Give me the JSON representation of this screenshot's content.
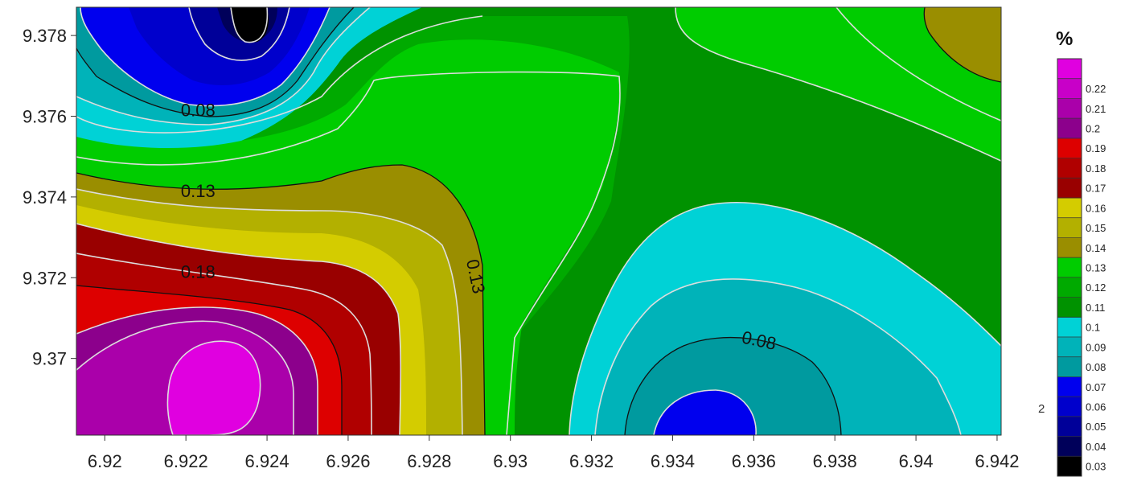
{
  "chart_data": {
    "type": "heatmap",
    "subtype": "filled-contour",
    "title": "",
    "xlabel": "",
    "ylabel": "",
    "xlim": [
      6.9193,
      6.9421
    ],
    "ylim": [
      9.3681,
      9.3787
    ],
    "x_ticks": [
      "6.92",
      "6.922",
      "6.924",
      "6.926",
      "6.928",
      "6.93",
      "6.932",
      "6.934",
      "6.936",
      "6.938",
      "6.94",
      "6.942"
    ],
    "x_tick_values": [
      6.92,
      6.922,
      6.924,
      6.926,
      6.928,
      6.93,
      6.932,
      6.934,
      6.936,
      6.938,
      6.94,
      6.942
    ],
    "y_ticks": [
      "9.37",
      "9.372",
      "9.374",
      "9.376",
      "9.378"
    ],
    "y_tick_values": [
      9.37,
      9.372,
      9.374,
      9.376,
      9.378
    ],
    "colorbar": {
      "unit": "%",
      "levels": [
        "0.03",
        "0.04",
        "0.05",
        "0.06",
        "0.07",
        "0.08",
        "0.09",
        "0.1",
        "0.11",
        "0.12",
        "0.13",
        "0.14",
        "0.15",
        "0.16",
        "0.17",
        "0.18",
        "0.19",
        "0.2",
        "0.21",
        "0.22"
      ],
      "bands": [
        {
          "range": [
            0.02,
            0.03
          ],
          "color": "#000000"
        },
        {
          "range": [
            0.03,
            0.04
          ],
          "color": "#00005a"
        },
        {
          "range": [
            0.04,
            0.05
          ],
          "color": "#000099"
        },
        {
          "range": [
            0.05,
            0.06
          ],
          "color": "#0000cc"
        },
        {
          "range": [
            0.06,
            0.07
          ],
          "color": "#0000ee"
        },
        {
          "range": [
            0.07,
            0.08
          ],
          "color": "#009a9f"
        },
        {
          "range": [
            0.08,
            0.09
          ],
          "color": "#00b3b9"
        },
        {
          "range": [
            0.09,
            0.1
          ],
          "color": "#00d2d6"
        },
        {
          "range": [
            0.1,
            0.11
          ],
          "color": "#009200"
        },
        {
          "range": [
            0.11,
            0.12
          ],
          "color": "#00aa00"
        },
        {
          "range": [
            0.12,
            0.13
          ],
          "color": "#00cc00"
        },
        {
          "range": [
            0.13,
            0.14
          ],
          "color": "#9a8e00"
        },
        {
          "range": [
            0.14,
            0.15
          ],
          "color": "#b3b000"
        },
        {
          "range": [
            0.15,
            0.16
          ],
          "color": "#d4cc00"
        },
        {
          "range": [
            0.16,
            0.17
          ],
          "color": "#990000"
        },
        {
          "range": [
            0.17,
            0.18
          ],
          "color": "#b00000"
        },
        {
          "range": [
            0.18,
            0.19
          ],
          "color": "#dd0000"
        },
        {
          "range": [
            0.19,
            0.2
          ],
          "color": "#8c008c"
        },
        {
          "range": [
            0.2,
            0.21
          ],
          "color": "#aa00aa"
        },
        {
          "range": [
            0.21,
            0.22
          ],
          "color": "#c800c8"
        },
        {
          "range": [
            0.22,
            0.23
          ],
          "color": "#e000e0"
        }
      ]
    },
    "contour_labels": [
      {
        "text": "0.08",
        "x": 6.9223,
        "y": 9.376
      },
      {
        "text": "0.13",
        "x": 6.9223,
        "y": 9.374
      },
      {
        "text": "0.18",
        "x": 6.9223,
        "y": 9.372
      },
      {
        "text": "0.13",
        "x": 6.929,
        "y": 9.372
      },
      {
        "text": "0.08",
        "x": 6.9361,
        "y": 9.3703
      }
    ],
    "features": [
      {
        "kind": "minimum",
        "value": 0.03,
        "x": 6.9236,
        "y": 9.3783
      },
      {
        "kind": "minimum",
        "value": 0.06,
        "x": 6.9347,
        "y": 9.3685
      },
      {
        "kind": "maximum",
        "value": 0.22,
        "x": 6.9228,
        "y": 9.3692
      }
    ]
  },
  "stray_mark": "2"
}
